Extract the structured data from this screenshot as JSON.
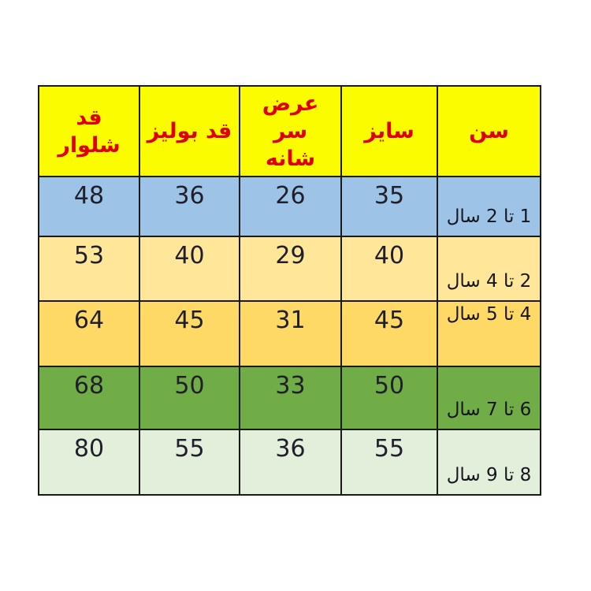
{
  "page": {
    "background": "#ffffff"
  },
  "colors": {
    "header_bg": "#fcfc00",
    "header_text": "#df0000",
    "border": "#1a1a1a",
    "number_text": "#20202c",
    "age_text": "#15151f"
  },
  "chart_data": {
    "type": "table",
    "title": "",
    "direction": "rtl",
    "headers": [
      "سن",
      "سایز",
      "عرض سر شانه",
      "قد بولیز",
      "قد شلوار"
    ],
    "rows": [
      {
        "age": "1 تا 2 سال",
        "size": 35,
        "shoulder_width": 26,
        "blouse_length": 36,
        "pants_length": 48,
        "row_color": "#9dc3e6"
      },
      {
        "age": "2 تا 4 سال",
        "size": 40,
        "shoulder_width": 29,
        "blouse_length": 40,
        "pants_length": 53,
        "row_color": "#ffe699"
      },
      {
        "age": "4 تا 5 سال",
        "size": 45,
        "shoulder_width": 31,
        "blouse_length": 45,
        "pants_length": 64,
        "row_color": "#ffd966"
      },
      {
        "age": "6 تا 7 سال",
        "size": 50,
        "shoulder_width": 33,
        "blouse_length": 50,
        "pants_length": 68,
        "row_color": "#70ad47"
      },
      {
        "age": "8 تا 9 سال",
        "size": 55,
        "shoulder_width": 36,
        "blouse_length": 55,
        "pants_length": 80,
        "row_color": "#e2efda"
      }
    ]
  }
}
